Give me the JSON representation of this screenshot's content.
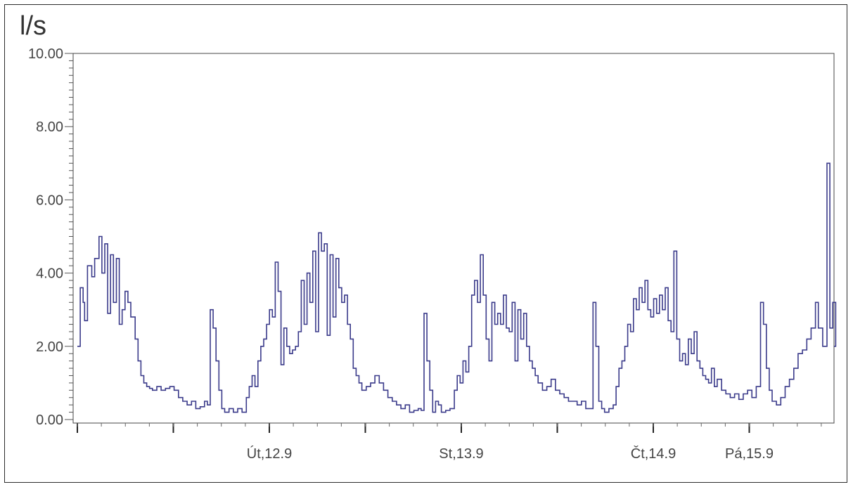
{
  "chart_data": {
    "type": "line",
    "ylabel": "l/s",
    "ylim": [
      0,
      10
    ],
    "y_ticks": [
      "0.00",
      "2.00",
      "4.00",
      "6.00",
      "8.00",
      "10.00"
    ],
    "y_tick_values": [
      0,
      2,
      4,
      6,
      8,
      10
    ],
    "x_day_ticks": [
      0,
      1,
      2,
      3,
      4,
      5,
      6,
      7,
      8
    ],
    "x_labels": [
      {
        "text": "Út,12.9",
        "at": 2
      },
      {
        "text": "St,13.9",
        "at": 4
      },
      {
        "text": "Čt,14.9",
        "at": 6
      },
      {
        "text": "Pá,15.9",
        "at": 7
      }
    ],
    "xlim": [
      0,
      7.9
    ],
    "grid": false,
    "line_color": "#3a3a8a",
    "series": [
      {
        "values": [
          [
            0.0,
            2.0
          ],
          [
            0.02,
            3.6
          ],
          [
            0.04,
            3.2
          ],
          [
            0.05,
            2.7
          ],
          [
            0.07,
            4.2
          ],
          [
            0.1,
            3.9
          ],
          [
            0.12,
            4.4
          ],
          [
            0.15,
            5.0
          ],
          [
            0.17,
            4.0
          ],
          [
            0.19,
            4.8
          ],
          [
            0.21,
            2.9
          ],
          [
            0.23,
            4.5
          ],
          [
            0.25,
            3.2
          ],
          [
            0.27,
            4.4
          ],
          [
            0.29,
            2.6
          ],
          [
            0.31,
            3.0
          ],
          [
            0.33,
            3.5
          ],
          [
            0.35,
            3.2
          ],
          [
            0.37,
            2.8
          ],
          [
            0.4,
            2.2
          ],
          [
            0.42,
            1.6
          ],
          [
            0.44,
            1.2
          ],
          [
            0.46,
            1.0
          ],
          [
            0.48,
            0.9
          ],
          [
            0.5,
            0.85
          ],
          [
            0.52,
            0.8
          ],
          [
            0.55,
            0.9
          ],
          [
            0.58,
            0.8
          ],
          [
            0.61,
            0.85
          ],
          [
            0.64,
            0.9
          ],
          [
            0.67,
            0.8
          ],
          [
            0.7,
            0.6
          ],
          [
            0.73,
            0.5
          ],
          [
            0.76,
            0.4
          ],
          [
            0.79,
            0.5
          ],
          [
            0.82,
            0.3
          ],
          [
            0.85,
            0.35
          ],
          [
            0.88,
            0.5
          ],
          [
            0.9,
            0.4
          ],
          [
            0.92,
            3.0
          ],
          [
            0.94,
            2.5
          ],
          [
            0.96,
            1.6
          ],
          [
            0.98,
            0.8
          ],
          [
            1.0,
            0.3
          ],
          [
            1.02,
            0.2
          ],
          [
            1.05,
            0.3
          ],
          [
            1.08,
            0.2
          ],
          [
            1.11,
            0.3
          ],
          [
            1.14,
            0.2
          ],
          [
            1.17,
            0.6
          ],
          [
            1.19,
            0.9
          ],
          [
            1.21,
            1.2
          ],
          [
            1.23,
            0.9
          ],
          [
            1.25,
            1.6
          ],
          [
            1.27,
            2.0
          ],
          [
            1.29,
            2.2
          ],
          [
            1.31,
            2.6
          ],
          [
            1.33,
            3.0
          ],
          [
            1.35,
            2.8
          ],
          [
            1.37,
            4.3
          ],
          [
            1.39,
            3.5
          ],
          [
            1.41,
            1.5
          ],
          [
            1.43,
            2.5
          ],
          [
            1.45,
            2.0
          ],
          [
            1.47,
            1.8
          ],
          [
            1.49,
            1.9
          ],
          [
            1.51,
            2.0
          ],
          [
            1.53,
            2.4
          ],
          [
            1.55,
            3.8
          ],
          [
            1.57,
            2.6
          ],
          [
            1.59,
            4.0
          ],
          [
            1.61,
            3.2
          ],
          [
            1.63,
            4.6
          ],
          [
            1.65,
            2.4
          ],
          [
            1.67,
            5.1
          ],
          [
            1.69,
            4.6
          ],
          [
            1.71,
            4.8
          ],
          [
            1.73,
            2.3
          ],
          [
            1.75,
            4.5
          ],
          [
            1.77,
            2.8
          ],
          [
            1.79,
            4.4
          ],
          [
            1.81,
            3.6
          ],
          [
            1.83,
            3.2
          ],
          [
            1.85,
            3.4
          ],
          [
            1.87,
            2.6
          ],
          [
            1.89,
            2.2
          ],
          [
            1.91,
            1.4
          ],
          [
            1.93,
            1.2
          ],
          [
            1.95,
            1.0
          ],
          [
            1.97,
            0.8
          ],
          [
            2.0,
            0.9
          ],
          [
            2.03,
            1.0
          ],
          [
            2.06,
            1.2
          ],
          [
            2.09,
            1.0
          ],
          [
            2.12,
            0.8
          ],
          [
            2.15,
            0.6
          ],
          [
            2.18,
            0.5
          ],
          [
            2.21,
            0.4
          ],
          [
            2.24,
            0.3
          ],
          [
            2.27,
            0.4
          ],
          [
            2.3,
            0.2
          ],
          [
            2.33,
            0.25
          ],
          [
            2.36,
            0.3
          ],
          [
            2.38,
            0.25
          ],
          [
            2.4,
            2.9
          ],
          [
            2.42,
            1.6
          ],
          [
            2.44,
            0.8
          ],
          [
            2.46,
            0.2
          ],
          [
            2.48,
            0.5
          ],
          [
            2.5,
            0.4
          ],
          [
            2.52,
            0.2
          ],
          [
            2.55,
            0.25
          ],
          [
            2.58,
            0.3
          ],
          [
            2.61,
            0.8
          ],
          [
            2.63,
            1.2
          ],
          [
            2.65,
            1.0
          ],
          [
            2.67,
            1.6
          ],
          [
            2.69,
            1.3
          ],
          [
            2.71,
            2.0
          ],
          [
            2.73,
            3.4
          ],
          [
            2.75,
            3.8
          ],
          [
            2.77,
            3.2
          ],
          [
            2.79,
            4.5
          ],
          [
            2.81,
            3.4
          ],
          [
            2.83,
            2.2
          ],
          [
            2.85,
            1.6
          ],
          [
            2.87,
            3.2
          ],
          [
            2.89,
            2.6
          ],
          [
            2.91,
            2.9
          ],
          [
            2.93,
            2.6
          ],
          [
            2.95,
            3.4
          ],
          [
            2.97,
            2.5
          ],
          [
            2.99,
            2.4
          ],
          [
            3.01,
            3.2
          ],
          [
            3.03,
            1.6
          ],
          [
            3.05,
            3.0
          ],
          [
            3.07,
            2.2
          ],
          [
            3.09,
            2.9
          ],
          [
            3.11,
            2.0
          ],
          [
            3.13,
            1.6
          ],
          [
            3.15,
            1.4
          ],
          [
            3.17,
            1.2
          ],
          [
            3.19,
            1.0
          ],
          [
            3.22,
            0.8
          ],
          [
            3.25,
            0.9
          ],
          [
            3.28,
            1.1
          ],
          [
            3.31,
            0.8
          ],
          [
            3.34,
            0.7
          ],
          [
            3.37,
            0.6
          ],
          [
            3.4,
            0.5
          ],
          [
            3.43,
            0.5
          ],
          [
            3.46,
            0.4
          ],
          [
            3.49,
            0.5
          ],
          [
            3.52,
            0.3
          ],
          [
            3.55,
            0.3
          ],
          [
            3.57,
            3.2
          ],
          [
            3.59,
            2.0
          ],
          [
            3.61,
            0.5
          ],
          [
            3.63,
            0.3
          ],
          [
            3.65,
            0.2
          ],
          [
            3.68,
            0.3
          ],
          [
            3.71,
            0.4
          ],
          [
            3.73,
            0.9
          ],
          [
            3.75,
            1.4
          ],
          [
            3.77,
            1.6
          ],
          [
            3.79,
            2.0
          ],
          [
            3.81,
            2.6
          ],
          [
            3.83,
            2.4
          ],
          [
            3.85,
            3.3
          ],
          [
            3.87,
            3.0
          ],
          [
            3.89,
            3.6
          ],
          [
            3.91,
            3.2
          ],
          [
            3.93,
            3.8
          ],
          [
            3.95,
            3.0
          ],
          [
            3.97,
            2.8
          ],
          [
            3.99,
            3.3
          ],
          [
            4.01,
            2.9
          ],
          [
            4.03,
            3.4
          ],
          [
            4.05,
            3.0
          ],
          [
            4.07,
            3.6
          ],
          [
            4.09,
            2.7
          ],
          [
            4.11,
            2.4
          ],
          [
            4.13,
            4.6
          ],
          [
            4.15,
            2.2
          ],
          [
            4.17,
            1.6
          ],
          [
            4.19,
            1.8
          ],
          [
            4.21,
            1.5
          ],
          [
            4.23,
            2.2
          ],
          [
            4.25,
            1.8
          ],
          [
            4.27,
            2.4
          ],
          [
            4.29,
            1.6
          ],
          [
            4.31,
            1.4
          ],
          [
            4.33,
            1.2
          ],
          [
            4.35,
            1.1
          ],
          [
            4.37,
            1.0
          ],
          [
            4.39,
            1.4
          ],
          [
            4.41,
            0.9
          ],
          [
            4.43,
            1.1
          ],
          [
            4.46,
            0.8
          ],
          [
            4.49,
            0.7
          ],
          [
            4.52,
            0.6
          ],
          [
            4.55,
            0.7
          ],
          [
            4.58,
            0.55
          ],
          [
            4.61,
            0.7
          ],
          [
            4.64,
            0.8
          ],
          [
            4.67,
            0.6
          ],
          [
            4.7,
            0.9
          ],
          [
            4.73,
            3.2
          ],
          [
            4.75,
            2.6
          ],
          [
            4.77,
            1.4
          ],
          [
            4.79,
            0.8
          ],
          [
            4.81,
            0.5
          ],
          [
            4.84,
            0.4
          ],
          [
            4.87,
            0.6
          ],
          [
            4.9,
            0.9
          ],
          [
            4.93,
            1.1
          ],
          [
            4.96,
            1.4
          ],
          [
            4.99,
            1.8
          ],
          [
            5.02,
            1.9
          ],
          [
            5.05,
            2.2
          ],
          [
            5.08,
            2.5
          ],
          [
            5.11,
            3.2
          ],
          [
            5.13,
            2.5
          ],
          [
            5.16,
            2.0
          ],
          [
            5.19,
            7.0
          ],
          [
            5.21,
            2.5
          ],
          [
            5.23,
            3.2
          ],
          [
            5.25,
            2.0
          ]
        ]
      }
    ]
  }
}
